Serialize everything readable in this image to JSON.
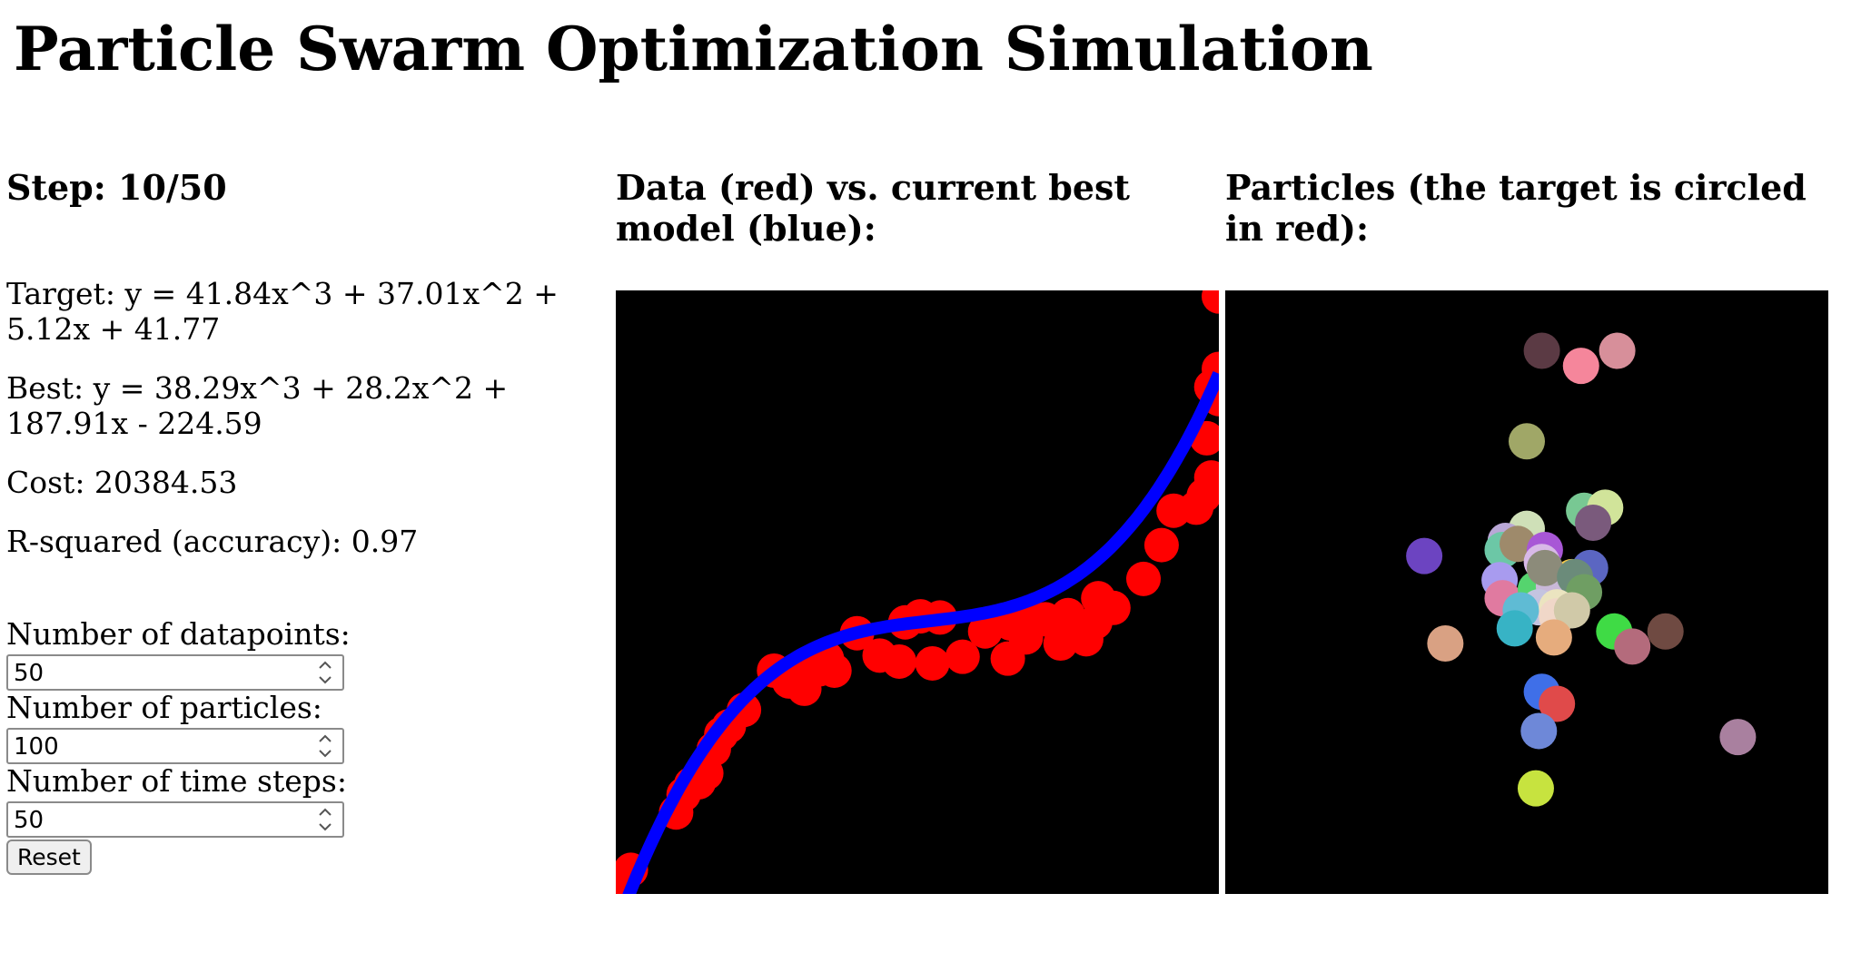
{
  "page": {
    "title": "Particle Swarm Optimization Simulation"
  },
  "status": {
    "step_label": "Step: 10/50",
    "target": "Target: y = 41.84x^3 + 37.01x^2 + 5.12x + 41.77",
    "best": "Best: y = 38.29x^3 + 28.2x^2 + 187.91x - 224.59",
    "cost": "Cost: 20384.53",
    "r_squared": "R-squared (accuracy): 0.97"
  },
  "controls": {
    "datapoints": {
      "label": "Number of datapoints:",
      "value": "50"
    },
    "particles": {
      "label": "Number of particles:",
      "value": "100"
    },
    "time_steps": {
      "label": "Number of time steps:",
      "value": "50"
    },
    "reset_label": "Reset"
  },
  "panels": {
    "data_heading": "Data (red) vs. current best model (blue):",
    "particles_heading": "Particles (the target is circled in red):"
  },
  "colors": {
    "data": "#ff0000",
    "model": "#0000ff",
    "background": "#000000"
  },
  "chart_data": [
    {
      "type": "scatter",
      "title": "Data (red) vs. current best model (blue):",
      "xlim": [
        -2,
        2
      ],
      "ylim": [
        -350,
        650
      ],
      "series": [
        {
          "name": "data",
          "color": "#ff0000",
          "points": [
            [
              -2.0,
              -340
            ],
            [
              -1.9,
              -310
            ],
            [
              -1.6,
              -215
            ],
            [
              -1.55,
              -185
            ],
            [
              -1.5,
              -168
            ],
            [
              -1.45,
              -165
            ],
            [
              -1.4,
              -150
            ],
            [
              -1.35,
              -110
            ],
            [
              -1.3,
              -85
            ],
            [
              -1.25,
              -72
            ],
            [
              -1.15,
              -45
            ],
            [
              -0.95,
              20
            ],
            [
              -0.85,
              2
            ],
            [
              -0.75,
              -10
            ],
            [
              -0.7,
              33
            ],
            [
              -0.65,
              22
            ],
            [
              -0.6,
              40
            ],
            [
              -0.55,
              20
            ],
            [
              -0.4,
              82
            ],
            [
              -0.25,
              45
            ],
            [
              -0.12,
              35
            ],
            [
              -0.08,
              100
            ],
            [
              0.02,
              110
            ],
            [
              0.1,
              32
            ],
            [
              0.15,
              108
            ],
            [
              0.3,
              43
            ],
            [
              0.45,
              85
            ],
            [
              0.6,
              40
            ],
            [
              0.62,
              98
            ],
            [
              0.72,
              75
            ],
            [
              0.75,
              111
            ],
            [
              0.85,
              105
            ],
            [
              0.95,
              65
            ],
            [
              1.0,
              112
            ],
            [
              1.05,
              82
            ],
            [
              1.12,
              72
            ],
            [
              1.18,
              100
            ],
            [
              1.2,
              140
            ],
            [
              1.3,
              124
            ],
            [
              1.5,
              172
            ],
            [
              1.62,
              228
            ],
            [
              1.7,
              285
            ],
            [
              1.85,
              290
            ],
            [
              1.9,
              310
            ],
            [
              1.95,
              340
            ],
            [
              1.92,
              405
            ],
            [
              2.0,
              470
            ],
            [
              1.95,
              490
            ],
            [
              2.0,
              520
            ],
            [
              2.0,
              640
            ]
          ]
        },
        {
          "name": "model",
          "type": "line",
          "color": "#0000ff",
          "coefficients": [
            38.29,
            28.2,
            187.91,
            -224.59
          ],
          "note": "curve drawn as shown on screen"
        }
      ]
    },
    {
      "type": "scatter",
      "title": "Particles (the target is circled in red):",
      "xlim": [
        -10,
        10
      ],
      "ylim": [
        -10,
        10
      ],
      "points": [
        [
          0.5,
          8.0,
          "#5b3a44"
        ],
        [
          1.8,
          7.5,
          "#f5869b"
        ],
        [
          3.0,
          8.0,
          "#d78f9a"
        ],
        [
          0.0,
          5.0,
          "#a0a767"
        ],
        [
          -3.4,
          1.2,
          "#6c44c1"
        ],
        [
          -2.7,
          -1.7,
          "#d9a183"
        ],
        [
          1.9,
          2.7,
          "#78c893"
        ],
        [
          2.6,
          2.8,
          "#d1e49a"
        ],
        [
          2.2,
          2.3,
          "#7a5a7c"
        ],
        [
          0.0,
          2.1,
          "#cfe0b8"
        ],
        [
          -0.7,
          1.7,
          "#b9a7d6"
        ],
        [
          -0.8,
          1.4,
          "#6cc7a6"
        ],
        [
          -0.3,
          1.6,
          "#9e8a6b"
        ],
        [
          0.6,
          1.4,
          "#a857d6"
        ],
        [
          0.5,
          1.0,
          "#d8b9e7"
        ],
        [
          2.1,
          0.8,
          "#5b66c2"
        ],
        [
          1.5,
          0.5,
          "#f2c94c"
        ],
        [
          -0.9,
          0.4,
          "#a89bef"
        ],
        [
          -0.8,
          -0.2,
          "#e07aa0"
        ],
        [
          0.3,
          0.1,
          "#55d46e"
        ],
        [
          0.9,
          0.2,
          "#c9b8d8"
        ],
        [
          0.6,
          0.8,
          "#8c8b7a"
        ],
        [
          1.6,
          0.5,
          "#6b8b7a"
        ],
        [
          1.9,
          0.0,
          "#6f9e63"
        ],
        [
          0.4,
          -0.5,
          "#c4c4e0"
        ],
        [
          1.0,
          -0.5,
          "#ebe4c0"
        ],
        [
          -0.2,
          -0.6,
          "#5fbbd4"
        ],
        [
          -0.4,
          -1.2,
          "#37b3c5"
        ],
        [
          1.0,
          -0.8,
          "#f0d7c8"
        ],
        [
          1.5,
          -0.6,
          "#d0c9a8"
        ],
        [
          0.9,
          -1.5,
          "#e6ac7d"
        ],
        [
          2.9,
          -1.3,
          "#3fdb45"
        ],
        [
          3.5,
          -1.8,
          "#b46b7c"
        ],
        [
          4.6,
          -1.3,
          "#6f4a42"
        ],
        [
          0.5,
          -3.3,
          "#3f6fe8"
        ],
        [
          1.0,
          -3.7,
          "#e04a4a"
        ],
        [
          0.4,
          -4.6,
          "#6e88d8"
        ],
        [
          7.0,
          -4.8,
          "#a9809f"
        ],
        [
          0.3,
          -6.5,
          "#c7e33f"
        ]
      ]
    }
  ]
}
